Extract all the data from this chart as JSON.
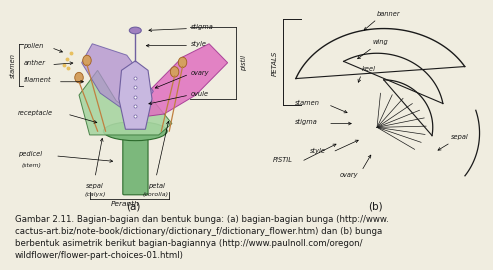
{
  "bg_color": "#f0ede0",
  "title_caption": "Gambar 2.11. Bagian-bagian dan bentuk bunga: (a) bagian-bagian bunga (http://www.\ncactus-art.biz/note-book/dictionary/dictionary_f/dictionary_flower.htm) dan (b) bunga\nberbentuk asimetrik berikut bagian-bagiannya (http://www.paulnoll.com/oregon/\nwildflower/flower-part-choices-01.html)",
  "label_a": "(a)",
  "label_b": "(b)",
  "caption_fontsize": 6.2,
  "label_fontsize": 7.5,
  "text_color": "#1a1a1a",
  "stem_color": "#7cb87c",
  "stem_edge": "#2d6b2d",
  "sepal_color": "#a8d5a2",
  "sepal_edge": "#3d7a3d",
  "petal_pink": "#e070c0",
  "petal_pink_edge": "#a03090",
  "petal_purple": "#b090d0",
  "petal_purple_edge": "#6050a0",
  "pistil_color": "#c8b8e0",
  "pistil_edge": "#7060a0",
  "stamen_color": "#c08040",
  "anther_color": "#d4a060",
  "anther_edge": "#a06020",
  "pollen_color": "#e8c060"
}
